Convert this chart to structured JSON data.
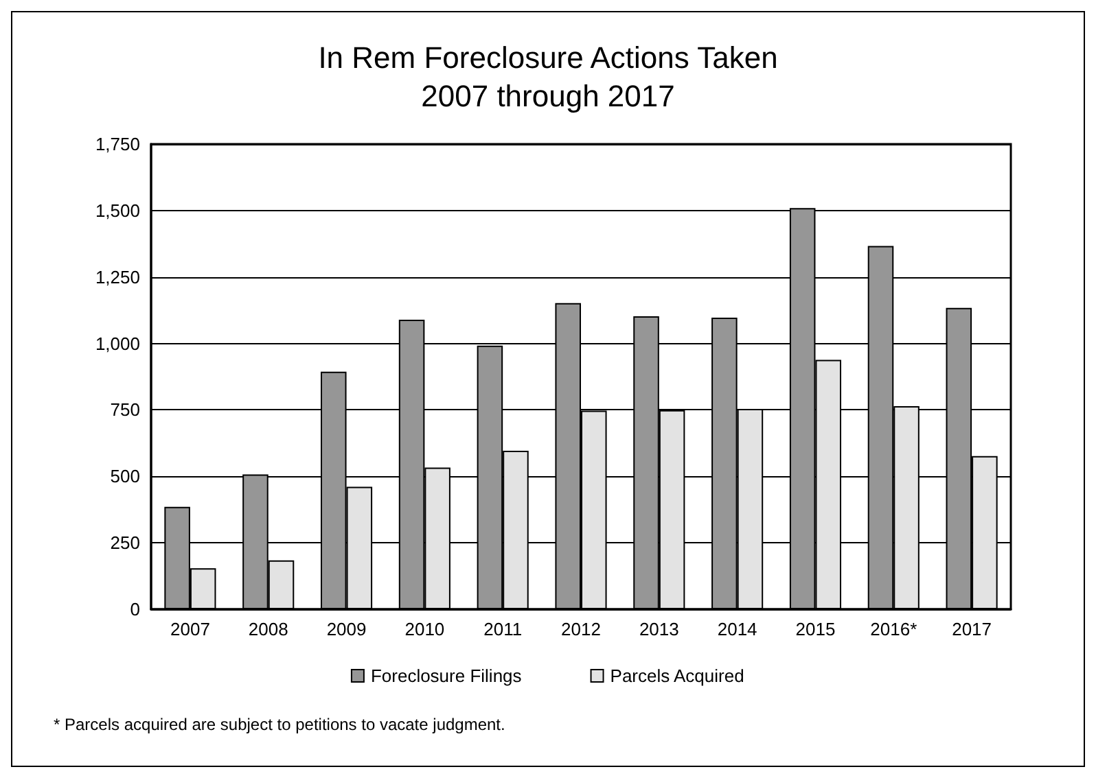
{
  "chart_data": {
    "type": "bar",
    "title": "In Rem Foreclosure Actions Taken\n2007 through 2017",
    "categories": [
      "2007",
      "2008",
      "2009",
      "2010",
      "2011",
      "2012",
      "2013",
      "2014",
      "2015",
      "2016*",
      "2017"
    ],
    "series": [
      {
        "name": "Foreclosure Filings",
        "color": "#969696",
        "values": [
          385,
          507,
          894,
          1089,
          992,
          1152,
          1102,
          1097,
          1509,
          1367,
          1134
        ]
      },
      {
        "name": "Parcels Acquired",
        "color": "#e3e3e3",
        "values": [
          154,
          184,
          461,
          533,
          596,
          747,
          749,
          754,
          938,
          764,
          576
        ]
      }
    ],
    "ylim": [
      0,
      1750
    ],
    "yticks": [
      0,
      250,
      500,
      750,
      {
        "value": 1000,
        "label": "1,000"
      },
      {
        "value": 1250,
        "label": "1,250"
      },
      {
        "value": 1500,
        "label": "1,500"
      },
      {
        "value": 1750,
        "label": "1,750"
      }
    ],
    "grid": "y",
    "legend": "bottom",
    "annotations": [
      "* Parcels acquired are subject to petitions to vacate judgment."
    ]
  }
}
